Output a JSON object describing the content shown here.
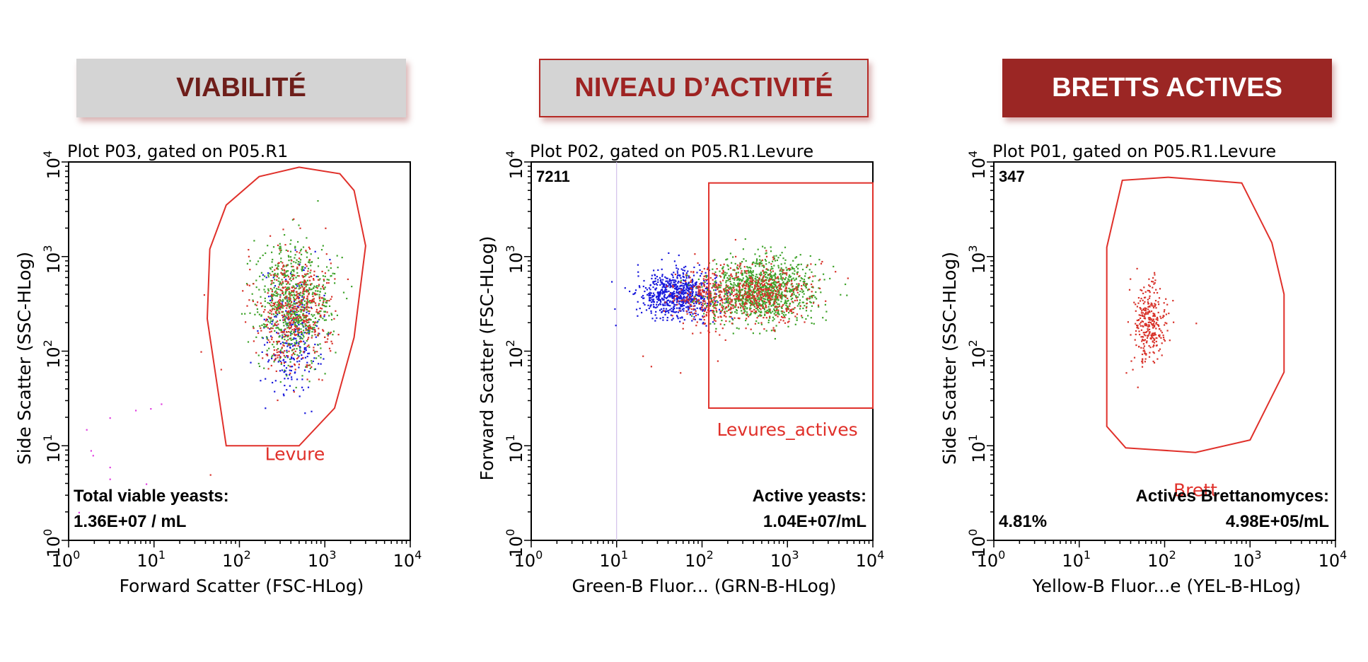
{
  "headers": [
    {
      "label": "VIABILITÉ",
      "style": "gray-box",
      "text_color": "#6e1e1a"
    },
    {
      "label": "NIVEAU D’ACTIVITÉ",
      "style": "gray-box-red-border",
      "text_color": "#9e2322"
    },
    {
      "label": "BRETTS ACTIVES",
      "style": "dark-red-box",
      "text_color": "#ffffff"
    }
  ],
  "colors": {
    "gate": "#e0302a",
    "green": "#3fa32b",
    "red": "#d8322a",
    "blue": "#1a1adc",
    "magenta": "#e040e0",
    "text": "#000000"
  },
  "chart_data": [
    {
      "type": "scatter",
      "title": "Plot P03, gated on P05.R1",
      "xlabel": "Forward Scatter (FSC-HLog)",
      "ylabel": "Side Scatter (SSC-HLog)",
      "xscale": "log",
      "yscale": "log",
      "xlim": [
        1,
        10000
      ],
      "ylim": [
        1,
        10000
      ],
      "x_ticks": [
        "10^0",
        "10^1",
        "10^2",
        "10^3",
        "10^4"
      ],
      "y_ticks": [
        "10^0",
        "10^1",
        "10^2",
        "10^3",
        "10^4"
      ],
      "count_label": "",
      "gate": {
        "type": "polygon",
        "label": "Levure",
        "points": [
          [
            70,
            10
          ],
          [
            500,
            10
          ],
          [
            1300,
            25
          ],
          [
            2200,
            140
          ],
          [
            3000,
            1300
          ],
          [
            2200,
            5000
          ],
          [
            1500,
            7500
          ],
          [
            500,
            8800
          ],
          [
            170,
            7000
          ],
          [
            70,
            3500
          ],
          [
            45,
            1200
          ],
          [
            42,
            220
          ]
        ]
      },
      "clusters": [
        {
          "color": "blue",
          "cx": 390,
          "cy": 150,
          "sx": 0.17,
          "sy": 0.33,
          "n": 260
        },
        {
          "color": "green",
          "cx": 420,
          "cy": 320,
          "sx": 0.22,
          "sy": 0.3,
          "n": 700
        },
        {
          "color": "red",
          "cx": 430,
          "cy": 280,
          "sx": 0.22,
          "sy": 0.32,
          "n": 500
        }
      ],
      "scattered": [
        [
          1.3,
          2
        ],
        [
          1.6,
          15
        ],
        [
          1.8,
          9
        ],
        [
          3,
          20
        ],
        [
          3,
          6
        ],
        [
          3,
          4.5
        ],
        [
          6,
          24
        ],
        [
          9,
          25
        ],
        [
          12,
          28
        ],
        [
          8,
          4
        ],
        [
          35,
          100
        ],
        [
          38,
          400
        ],
        [
          60,
          65
        ],
        [
          45,
          5
        ],
        [
          1.2,
          1.8
        ],
        [
          1.9,
          8
        ]
      ],
      "annotations": {
        "line1": "Total viable yeasts:",
        "line2": "1.36E+07 / mL",
        "percent": ""
      }
    },
    {
      "type": "scatter",
      "title": "Plot P02, gated on P05.R1.Levure",
      "xlabel": "Green-B Fluor... (GRN-B-HLog)",
      "ylabel": "Forward Scatter (FSC-HLog)",
      "xscale": "log",
      "yscale": "log",
      "xlim": [
        1,
        10000
      ],
      "ylim": [
        1,
        10000
      ],
      "x_ticks": [
        "10^0",
        "10^1",
        "10^2",
        "10^3",
        "10^4"
      ],
      "y_ticks": [
        "10^0",
        "10^1",
        "10^2",
        "10^3",
        "10^4"
      ],
      "count_label": "7211",
      "vertical_marker": 10,
      "gate": {
        "type": "rectangle",
        "label": "Levures_actives",
        "x_range": [
          120,
          10000
        ],
        "y_range": [
          25,
          6000
        ]
      },
      "clusters": [
        {
          "color": "blue",
          "cx": 50,
          "cy": 400,
          "sx": 0.22,
          "sy": 0.12,
          "n": 750
        },
        {
          "color": "red",
          "cx": 110,
          "cy": 380,
          "sx": 0.2,
          "sy": 0.14,
          "n": 250
        },
        {
          "color": "green",
          "cx": 500,
          "cy": 450,
          "sx": 0.3,
          "sy": 0.17,
          "n": 1100
        },
        {
          "color": "red",
          "cx": 450,
          "cy": 420,
          "sx": 0.32,
          "sy": 0.17,
          "n": 450
        }
      ],
      "scattered": [
        [
          20,
          90
        ],
        [
          25,
          70
        ],
        [
          55,
          60
        ],
        [
          150,
          80
        ],
        [
          5000,
          600
        ],
        [
          2500,
          900
        ],
        [
          220,
          200
        ]
      ],
      "annotations": {
        "line1": "Active yeasts:",
        "line2": "1.04E+07/mL",
        "percent": ""
      }
    },
    {
      "type": "scatter",
      "title": "Plot P01, gated on P05.R1.Levure",
      "xlabel": "Yellow-B Fluor...e (YEL-B-HLog)",
      "ylabel": "Side Scatter (SSC-HLog)",
      "xscale": "log",
      "yscale": "log",
      "xlim": [
        1,
        10000
      ],
      "ylim": [
        1,
        10000
      ],
      "x_ticks": [
        "10^0",
        "10^1",
        "10^2",
        "10^3",
        "10^4"
      ],
      "y_ticks": [
        "10^0",
        "10^1",
        "10^2",
        "10^3",
        "10^4"
      ],
      "count_label": "347",
      "gate": {
        "type": "polygon",
        "label": "Brett",
        "points": [
          [
            35,
            9.5
          ],
          [
            230,
            8.5
          ],
          [
            1000,
            11.5
          ],
          [
            2500,
            60
          ],
          [
            2500,
            400
          ],
          [
            1800,
            1400
          ],
          [
            800,
            6000
          ],
          [
            110,
            6900
          ],
          [
            32,
            6400
          ],
          [
            21,
            1250
          ],
          [
            21,
            16
          ]
        ]
      },
      "clusters": [
        {
          "color": "red",
          "cx": 65,
          "cy": 210,
          "sx": 0.09,
          "sy": 0.2,
          "n": 300
        }
      ],
      "scattered": [
        [
          230,
          200
        ],
        [
          35,
          60
        ],
        [
          40,
          80
        ]
      ],
      "annotations": {
        "line1": "Actives Brettanomyces:",
        "line2": "4.98E+05/mL",
        "percent": "4.81%"
      }
    }
  ]
}
